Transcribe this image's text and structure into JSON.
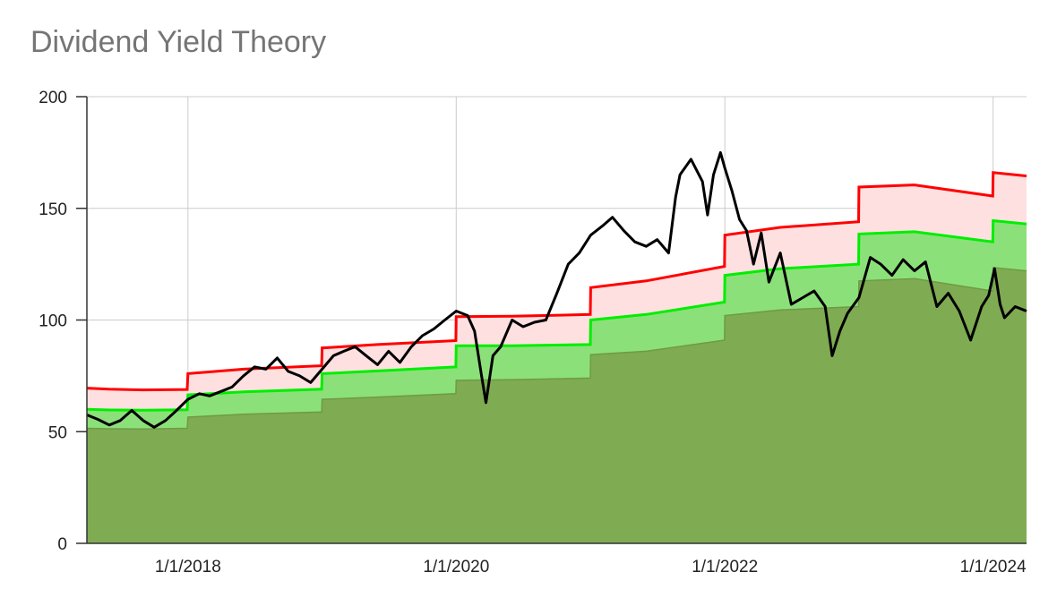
{
  "chart_data": {
    "type": "area",
    "title": "Dividend Yield Theory",
    "xlabel": "",
    "ylabel": "",
    "ylim": [
      0,
      200
    ],
    "xlim": [
      "2017-04-01",
      "2024-04-01"
    ],
    "y_ticks": [
      "0",
      "50",
      "100",
      "150",
      "200"
    ],
    "x_ticks": [
      {
        "date": "2018-01-01",
        "label": "1/1/2018"
      },
      {
        "date": "2020-01-01",
        "label": "1/1/2020"
      },
      {
        "date": "2022-01-01",
        "label": "1/1/2022"
      },
      {
        "date": "2024-01-01",
        "label": "1/1/2024"
      }
    ],
    "grid": true,
    "legend": "none",
    "colors": {
      "undervalued_fill": "#7fab52",
      "fair_fill": "#8ce07a",
      "overvalued_fill": "#ffe0e0",
      "overvalued_line": "#ff0000",
      "fair_line": "#00ee00",
      "price_line": "#000000",
      "grid": "#cccccc"
    },
    "series": [
      {
        "role": "undervalued",
        "points": [
          [
            "2017-04-01",
            51.5
          ],
          [
            "2017-06-01",
            51.3
          ],
          [
            "2017-09-01",
            51.2
          ],
          [
            "2017-12-30",
            51.5
          ],
          [
            "2018-01-01",
            56.5
          ],
          [
            "2018-06-01",
            57.8
          ],
          [
            "2018-12-31",
            58.8
          ],
          [
            "2019-01-01",
            64.5
          ],
          [
            "2019-06-01",
            65.5
          ],
          [
            "2019-12-31",
            67.0
          ],
          [
            "2020-01-01",
            73.0
          ],
          [
            "2020-06-01",
            73.3
          ],
          [
            "2020-12-31",
            74.0
          ],
          [
            "2021-01-01",
            84.5
          ],
          [
            "2021-06-01",
            86.0
          ],
          [
            "2021-12-31",
            91.0
          ],
          [
            "2022-01-01",
            102.0
          ],
          [
            "2022-06-01",
            104.5
          ],
          [
            "2022-12-31",
            106.0
          ],
          [
            "2023-01-01",
            117.5
          ],
          [
            "2023-06-01",
            118.5
          ],
          [
            "2023-12-31",
            113.0
          ],
          [
            "2024-01-01",
            123.5
          ],
          [
            "2024-04-01",
            122.0
          ]
        ]
      },
      {
        "role": "fair value",
        "points": [
          [
            "2017-04-01",
            60.0
          ],
          [
            "2017-06-01",
            59.7
          ],
          [
            "2017-09-01",
            59.6
          ],
          [
            "2017-12-30",
            59.8
          ],
          [
            "2018-01-01",
            66.5
          ],
          [
            "2018-06-01",
            67.8
          ],
          [
            "2018-12-31",
            69.0
          ],
          [
            "2019-01-01",
            76.0
          ],
          [
            "2019-06-01",
            77.2
          ],
          [
            "2019-12-31",
            79.0
          ],
          [
            "2020-01-01",
            88.5
          ],
          [
            "2020-06-01",
            88.5
          ],
          [
            "2020-12-31",
            89.0
          ],
          [
            "2021-01-01",
            100.0
          ],
          [
            "2021-06-01",
            102.5
          ],
          [
            "2021-12-31",
            108.0
          ],
          [
            "2022-01-01",
            120.0
          ],
          [
            "2022-06-01",
            123.0
          ],
          [
            "2022-12-31",
            125.0
          ],
          [
            "2023-01-01",
            138.5
          ],
          [
            "2023-06-01",
            139.5
          ],
          [
            "2023-12-31",
            135.0
          ],
          [
            "2024-01-01",
            144.5
          ],
          [
            "2024-04-01",
            143.0
          ]
        ]
      },
      {
        "role": "overvalued",
        "points": [
          [
            "2017-04-01",
            69.5
          ],
          [
            "2017-06-01",
            69.0
          ],
          [
            "2017-09-01",
            68.7
          ],
          [
            "2017-12-30",
            68.9
          ],
          [
            "2018-01-01",
            76.0
          ],
          [
            "2018-06-01",
            78.0
          ],
          [
            "2018-12-31",
            79.5
          ],
          [
            "2019-01-01",
            87.5
          ],
          [
            "2019-06-01",
            89.0
          ],
          [
            "2019-12-31",
            90.8
          ],
          [
            "2020-01-01",
            101.5
          ],
          [
            "2020-06-01",
            101.7
          ],
          [
            "2020-12-31",
            102.5
          ],
          [
            "2021-01-01",
            114.5
          ],
          [
            "2021-06-01",
            117.5
          ],
          [
            "2021-12-31",
            124.0
          ],
          [
            "2022-01-01",
            138.0
          ],
          [
            "2022-06-01",
            141.5
          ],
          [
            "2022-12-31",
            144.0
          ],
          [
            "2023-01-01",
            159.5
          ],
          [
            "2023-06-01",
            160.5
          ],
          [
            "2023-12-31",
            155.5
          ],
          [
            "2024-01-01",
            166.0
          ],
          [
            "2024-04-01",
            164.5
          ]
        ]
      },
      {
        "role": "price",
        "points": [
          [
            "2017-04-01",
            57.5
          ],
          [
            "2017-05-01",
            55.5
          ],
          [
            "2017-06-01",
            53.0
          ],
          [
            "2017-07-01",
            55.0
          ],
          [
            "2017-08-01",
            59.5
          ],
          [
            "2017-09-01",
            55.0
          ],
          [
            "2017-10-01",
            52.0
          ],
          [
            "2017-11-01",
            55.0
          ],
          [
            "2017-12-01",
            59.5
          ],
          [
            "2018-01-01",
            64.5
          ],
          [
            "2018-02-01",
            67.0
          ],
          [
            "2018-03-01",
            66.0
          ],
          [
            "2018-04-01",
            68.0
          ],
          [
            "2018-05-01",
            70.0
          ],
          [
            "2018-06-01",
            75.0
          ],
          [
            "2018-07-01",
            79.0
          ],
          [
            "2018-08-01",
            78.0
          ],
          [
            "2018-09-01",
            83.0
          ],
          [
            "2018-10-01",
            77.0
          ],
          [
            "2018-11-01",
            75.0
          ],
          [
            "2018-12-01",
            72.0
          ],
          [
            "2019-01-01",
            78.0
          ],
          [
            "2019-02-01",
            84.0
          ],
          [
            "2019-03-01",
            86.0
          ],
          [
            "2019-04-01",
            88.0
          ],
          [
            "2019-05-01",
            84.0
          ],
          [
            "2019-06-01",
            80.0
          ],
          [
            "2019-07-01",
            86.0
          ],
          [
            "2019-08-01",
            81.0
          ],
          [
            "2019-09-01",
            88.0
          ],
          [
            "2019-10-01",
            93.0
          ],
          [
            "2019-11-01",
            96.0
          ],
          [
            "2019-12-01",
            100.0
          ],
          [
            "2020-01-01",
            104.0
          ],
          [
            "2020-02-01",
            102.0
          ],
          [
            "2020-02-20",
            95.0
          ],
          [
            "2020-03-10",
            75.0
          ],
          [
            "2020-03-22",
            63.0
          ],
          [
            "2020-04-10",
            84.0
          ],
          [
            "2020-05-01",
            88.0
          ],
          [
            "2020-06-01",
            100.0
          ],
          [
            "2020-07-01",
            97.0
          ],
          [
            "2020-08-01",
            99.0
          ],
          [
            "2020-09-01",
            100.0
          ],
          [
            "2020-10-01",
            112.0
          ],
          [
            "2020-11-01",
            125.0
          ],
          [
            "2020-12-01",
            130.0
          ],
          [
            "2021-01-01",
            138.0
          ],
          [
            "2021-02-01",
            142.0
          ],
          [
            "2021-03-01",
            146.0
          ],
          [
            "2021-04-01",
            140.0
          ],
          [
            "2021-05-01",
            135.0
          ],
          [
            "2021-06-01",
            133.0
          ],
          [
            "2021-07-01",
            136.0
          ],
          [
            "2021-08-01",
            130.0
          ],
          [
            "2021-08-20",
            155.0
          ],
          [
            "2021-09-01",
            165.0
          ],
          [
            "2021-10-01",
            172.0
          ],
          [
            "2021-11-01",
            162.0
          ],
          [
            "2021-11-15",
            147.0
          ],
          [
            "2021-12-01",
            165.0
          ],
          [
            "2021-12-20",
            175.0
          ],
          [
            "2022-01-01",
            168.0
          ],
          [
            "2022-01-20",
            158.0
          ],
          [
            "2022-02-10",
            145.0
          ],
          [
            "2022-03-01",
            140.0
          ],
          [
            "2022-03-20",
            125.0
          ],
          [
            "2022-04-10",
            139.0
          ],
          [
            "2022-05-01",
            117.0
          ],
          [
            "2022-06-01",
            130.0
          ],
          [
            "2022-07-01",
            107.0
          ],
          [
            "2022-08-01",
            110.0
          ],
          [
            "2022-09-01",
            113.0
          ],
          [
            "2022-10-01",
            106.0
          ],
          [
            "2022-10-20",
            84.0
          ],
          [
            "2022-11-10",
            95.0
          ],
          [
            "2022-12-01",
            103.0
          ],
          [
            "2023-01-01",
            110.0
          ],
          [
            "2023-02-01",
            128.0
          ],
          [
            "2023-03-01",
            125.0
          ],
          [
            "2023-04-01",
            120.0
          ],
          [
            "2023-05-01",
            127.0
          ],
          [
            "2023-06-01",
            122.0
          ],
          [
            "2023-07-01",
            126.0
          ],
          [
            "2023-08-01",
            106.0
          ],
          [
            "2023-09-01",
            112.0
          ],
          [
            "2023-10-01",
            104.0
          ],
          [
            "2023-11-01",
            91.0
          ],
          [
            "2023-12-01",
            106.0
          ],
          [
            "2023-12-20",
            111.0
          ],
          [
            "2024-01-05",
            123.0
          ],
          [
            "2024-01-20",
            107.0
          ],
          [
            "2024-02-01",
            101.0
          ],
          [
            "2024-03-01",
            106.0
          ],
          [
            "2024-04-01",
            104.0
          ]
        ]
      }
    ]
  }
}
